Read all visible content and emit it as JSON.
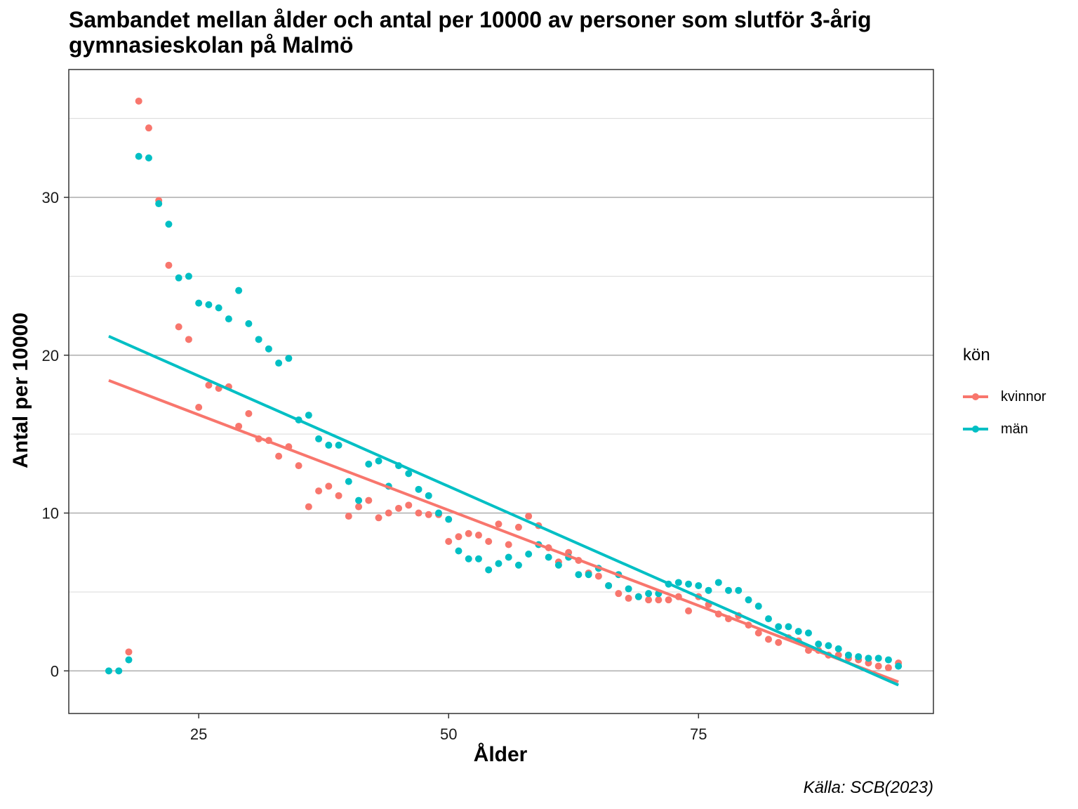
{
  "chart_data": {
    "type": "scatter",
    "title": "Sambandet mellan ålder och antal per 10000 av personer som slutför 3-årig gymnasieskolan på Malmö",
    "xlabel": "Ålder",
    "ylabel": "Antal per 10000",
    "caption": "Källa: SCB(2023)",
    "xlim": [
      12,
      98.5
    ],
    "ylim": [
      -2.7,
      38.1
    ],
    "x_ticks": [
      25,
      50,
      75
    ],
    "y_ticks": [
      0,
      10,
      20,
      30
    ],
    "grid": true,
    "legend": {
      "title": "kön",
      "position": "right"
    },
    "series": [
      {
        "name": "kvinnor",
        "color": "#F8766D",
        "x": [
          18,
          19,
          20,
          21,
          22,
          23,
          24,
          25,
          26,
          27,
          28,
          29,
          30,
          31,
          32,
          33,
          34,
          35,
          36,
          37,
          38,
          39,
          40,
          41,
          42,
          43,
          44,
          45,
          46,
          47,
          48,
          49,
          50,
          51,
          52,
          53,
          54,
          55,
          56,
          57,
          58,
          59,
          60,
          61,
          62,
          63,
          64,
          65,
          66,
          67,
          68,
          69,
          70,
          71,
          72,
          73,
          74,
          75,
          76,
          77,
          78,
          79,
          80,
          81,
          82,
          83,
          84,
          85,
          86,
          87,
          88,
          89,
          90,
          91,
          92,
          93,
          94,
          95
        ],
        "y": [
          1.2,
          36.1,
          34.4,
          29.8,
          25.7,
          21.8,
          21.0,
          16.7,
          18.1,
          17.9,
          18.0,
          15.5,
          16.3,
          14.7,
          14.6,
          13.6,
          14.2,
          13.0,
          10.4,
          11.4,
          11.7,
          11.1,
          9.8,
          10.4,
          10.8,
          9.7,
          10.0,
          10.3,
          10.5,
          10.0,
          9.9,
          9.9,
          8.2,
          8.5,
          8.7,
          8.6,
          8.2,
          9.3,
          8.0,
          9.1,
          9.8,
          9.2,
          7.8,
          6.9,
          7.5,
          7.0,
          6.2,
          6.0,
          5.4,
          4.9,
          4.6,
          4.7,
          4.5,
          4.5,
          4.5,
          4.7,
          3.8,
          4.7,
          4.2,
          3.6,
          3.3,
          3.5,
          2.9,
          2.4,
          2.0,
          1.8,
          2.1,
          1.9,
          1.3,
          1.3,
          1.0,
          1.0,
          0.8,
          0.7,
          0.5,
          0.3,
          0.2,
          0.5
        ],
        "trend": [
          18.4,
          -0.7
        ]
      },
      {
        "name": "män",
        "color": "#00BFC4",
        "x": [
          16,
          17,
          18,
          19,
          20,
          21,
          22,
          23,
          24,
          25,
          26,
          27,
          28,
          29,
          30,
          31,
          32,
          33,
          34,
          35,
          36,
          37,
          38,
          39,
          40,
          41,
          42,
          43,
          44,
          45,
          46,
          47,
          48,
          49,
          50,
          51,
          52,
          53,
          54,
          55,
          56,
          57,
          58,
          59,
          60,
          61,
          62,
          63,
          64,
          65,
          66,
          67,
          68,
          69,
          70,
          71,
          72,
          73,
          74,
          75,
          76,
          77,
          78,
          79,
          80,
          81,
          82,
          83,
          84,
          85,
          86,
          87,
          88,
          89,
          90,
          91,
          92,
          93,
          94,
          95
        ],
        "y": [
          0.0,
          0.0,
          0.7,
          32.6,
          32.5,
          29.6,
          28.3,
          24.9,
          25.0,
          23.3,
          23.2,
          23.0,
          22.3,
          24.1,
          22.0,
          21.0,
          20.4,
          19.5,
          19.8,
          15.9,
          16.2,
          14.7,
          14.3,
          14.3,
          12.0,
          10.8,
          13.1,
          13.3,
          11.7,
          13.0,
          12.5,
          11.5,
          11.1,
          10.0,
          9.6,
          7.6,
          7.1,
          7.1,
          6.4,
          6.8,
          7.2,
          6.7,
          7.4,
          8.0,
          7.2,
          6.7,
          7.2,
          6.1,
          6.1,
          6.5,
          5.4,
          6.1,
          5.2,
          4.7,
          4.9,
          4.9,
          5.5,
          5.6,
          5.5,
          5.4,
          5.1,
          5.6,
          5.1,
          5.1,
          4.5,
          4.1,
          3.3,
          2.8,
          2.8,
          2.5,
          2.4,
          1.7,
          1.6,
          1.4,
          1.0,
          0.9,
          0.8,
          0.8,
          0.7,
          0.3
        ],
        "trend": [
          21.2,
          -0.9
        ]
      }
    ]
  }
}
